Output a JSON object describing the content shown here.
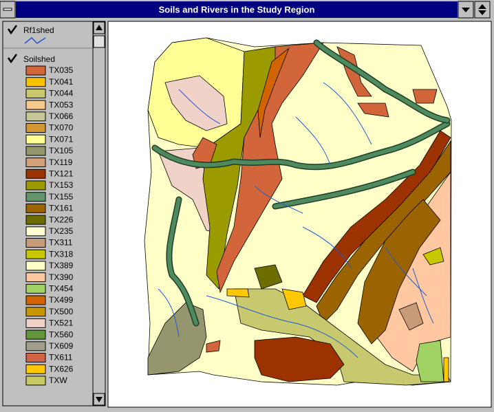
{
  "window": {
    "title": "Soils and Rivers in the Study Region"
  },
  "legend": {
    "layers": [
      {
        "name": "Rf1shed",
        "checked": true,
        "line_color": "#2850c8"
      },
      {
        "name": "Soilshed",
        "checked": true,
        "classes": [
          {
            "label": "TX035",
            "color": "#d2663a"
          },
          {
            "label": "TX041",
            "color": "#f5c400"
          },
          {
            "label": "TX044",
            "color": "#c8c86e"
          },
          {
            "label": "TX053",
            "color": "#f5c88c"
          },
          {
            "label": "TX066",
            "color": "#c8c896"
          },
          {
            "label": "TX070",
            "color": "#d29632"
          },
          {
            "label": "TX071",
            "color": "#ffff96"
          },
          {
            "label": "TX105",
            "color": "#96966e"
          },
          {
            "label": "TX119",
            "color": "#d2a078"
          },
          {
            "label": "TX121",
            "color": "#9b3200"
          },
          {
            "label": "TX153",
            "color": "#9b9b00"
          },
          {
            "label": "TX155",
            "color": "#64966e"
          },
          {
            "label": "TX161",
            "color": "#9b6400"
          },
          {
            "label": "TX226",
            "color": "#6e6e00"
          },
          {
            "label": "TX235",
            "color": "#ffffd2"
          },
          {
            "label": "TX311",
            "color": "#c89b78"
          },
          {
            "label": "TX318",
            "color": "#c8c800"
          },
          {
            "label": "TX389",
            "color": "#ffffc8"
          },
          {
            "label": "TX390",
            "color": "#ffc8a0"
          },
          {
            "label": "TX454",
            "color": "#a0d264"
          },
          {
            "label": "TX499",
            "color": "#d26400"
          },
          {
            "label": "TX500",
            "color": "#c89600"
          },
          {
            "label": "TX521",
            "color": "#f0d2c8"
          },
          {
            "label": "TX560",
            "color": "#64963c"
          },
          {
            "label": "TX609",
            "color": "#a0a08c"
          },
          {
            "label": "TX611",
            "color": "#d26446"
          },
          {
            "label": "TX626",
            "color": "#ffc800"
          },
          {
            "label": "TXW",
            "color": "#c8c864"
          }
        ]
      }
    ]
  }
}
